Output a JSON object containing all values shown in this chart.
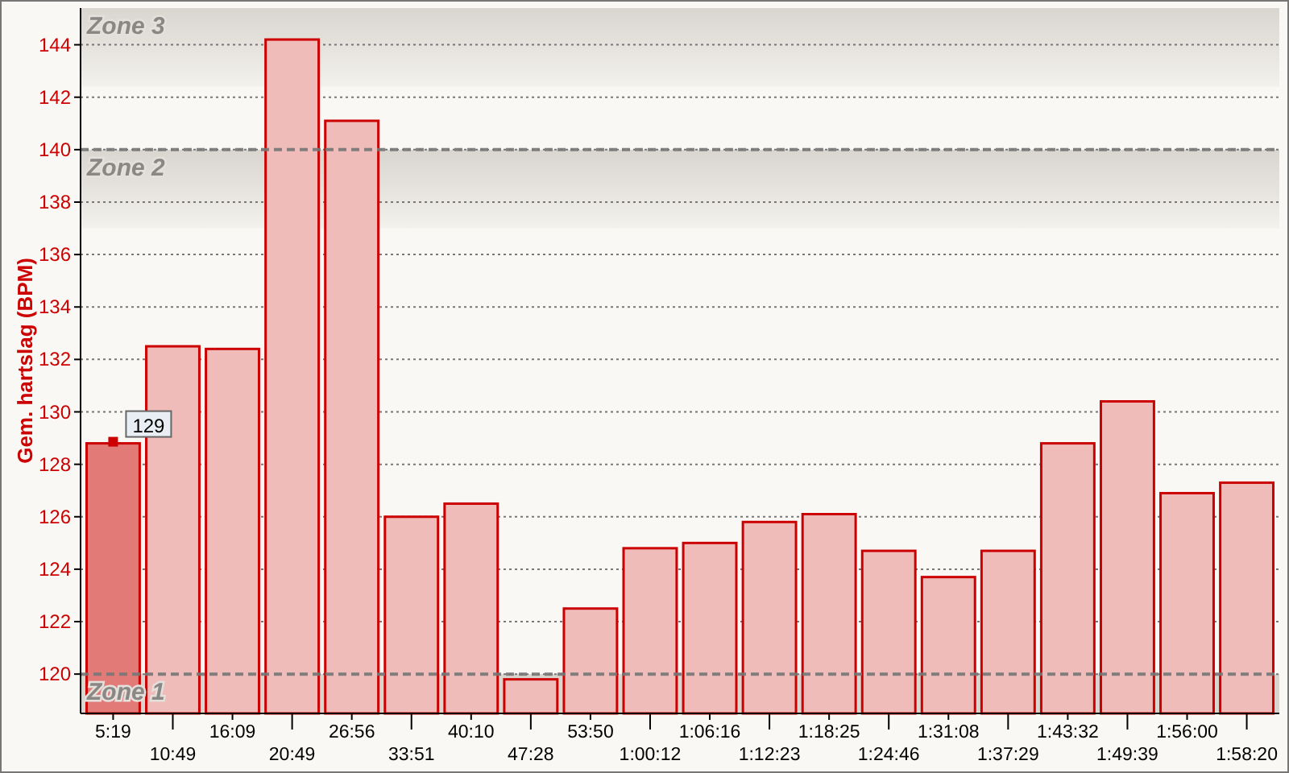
{
  "chart_data": {
    "type": "bar",
    "ylabel": "Gem. hartslag (BPM)",
    "categories": [
      "5:19",
      "10:49",
      "16:09",
      "20:49",
      "26:56",
      "33:51",
      "40:10",
      "47:28",
      "53:50",
      "1:00:12",
      "1:06:16",
      "1:12:23",
      "1:18:25",
      "1:24:46",
      "1:31:08",
      "1:37:29",
      "1:43:32",
      "1:49:39",
      "1:56:00",
      "1:58:20"
    ],
    "values": [
      128.8,
      132.5,
      132.4,
      144.2,
      141.1,
      126.0,
      126.5,
      119.8,
      122.5,
      124.8,
      125.0,
      125.8,
      126.1,
      124.7,
      123.7,
      124.7,
      128.8,
      130.4,
      126.9,
      127.3
    ],
    "colors": [
      "#e27a78",
      "#efbcb9",
      "#efbcb9",
      "#efbcb9",
      "#efbcb9",
      "#efbcb9",
      "#efbcb9",
      "#efbcb9",
      "#efbcb9",
      "#efbcb9",
      "#efbcb9",
      "#efbcb9",
      "#efbcb9",
      "#efbcb9",
      "#efbcb9",
      "#efbcb9",
      "#efbcb9",
      "#efbcb9",
      "#efbcb9",
      "#efbcb9"
    ],
    "ylim": [
      118.5,
      145.4
    ],
    "yticks": [
      120,
      122,
      124,
      126,
      128,
      130,
      132,
      134,
      136,
      138,
      140,
      142,
      144
    ],
    "grid": "y",
    "bands": [
      {
        "axis": "y",
        "from": 142.4,
        "to": 145.4,
        "label": "Zone 3",
        "color": "#d9d5cf"
      },
      {
        "axis": "y",
        "from": 137,
        "to": 140,
        "label": "Zone 2",
        "color": "#d9d5cf"
      },
      {
        "axis": "y",
        "from": 118.5,
        "to": 120,
        "label": "Zone 1",
        "color": "#d9d5cf"
      }
    ],
    "annotations": [
      {
        "text": "129",
        "x": "5:19",
        "y": 128.8
      }
    ]
  }
}
